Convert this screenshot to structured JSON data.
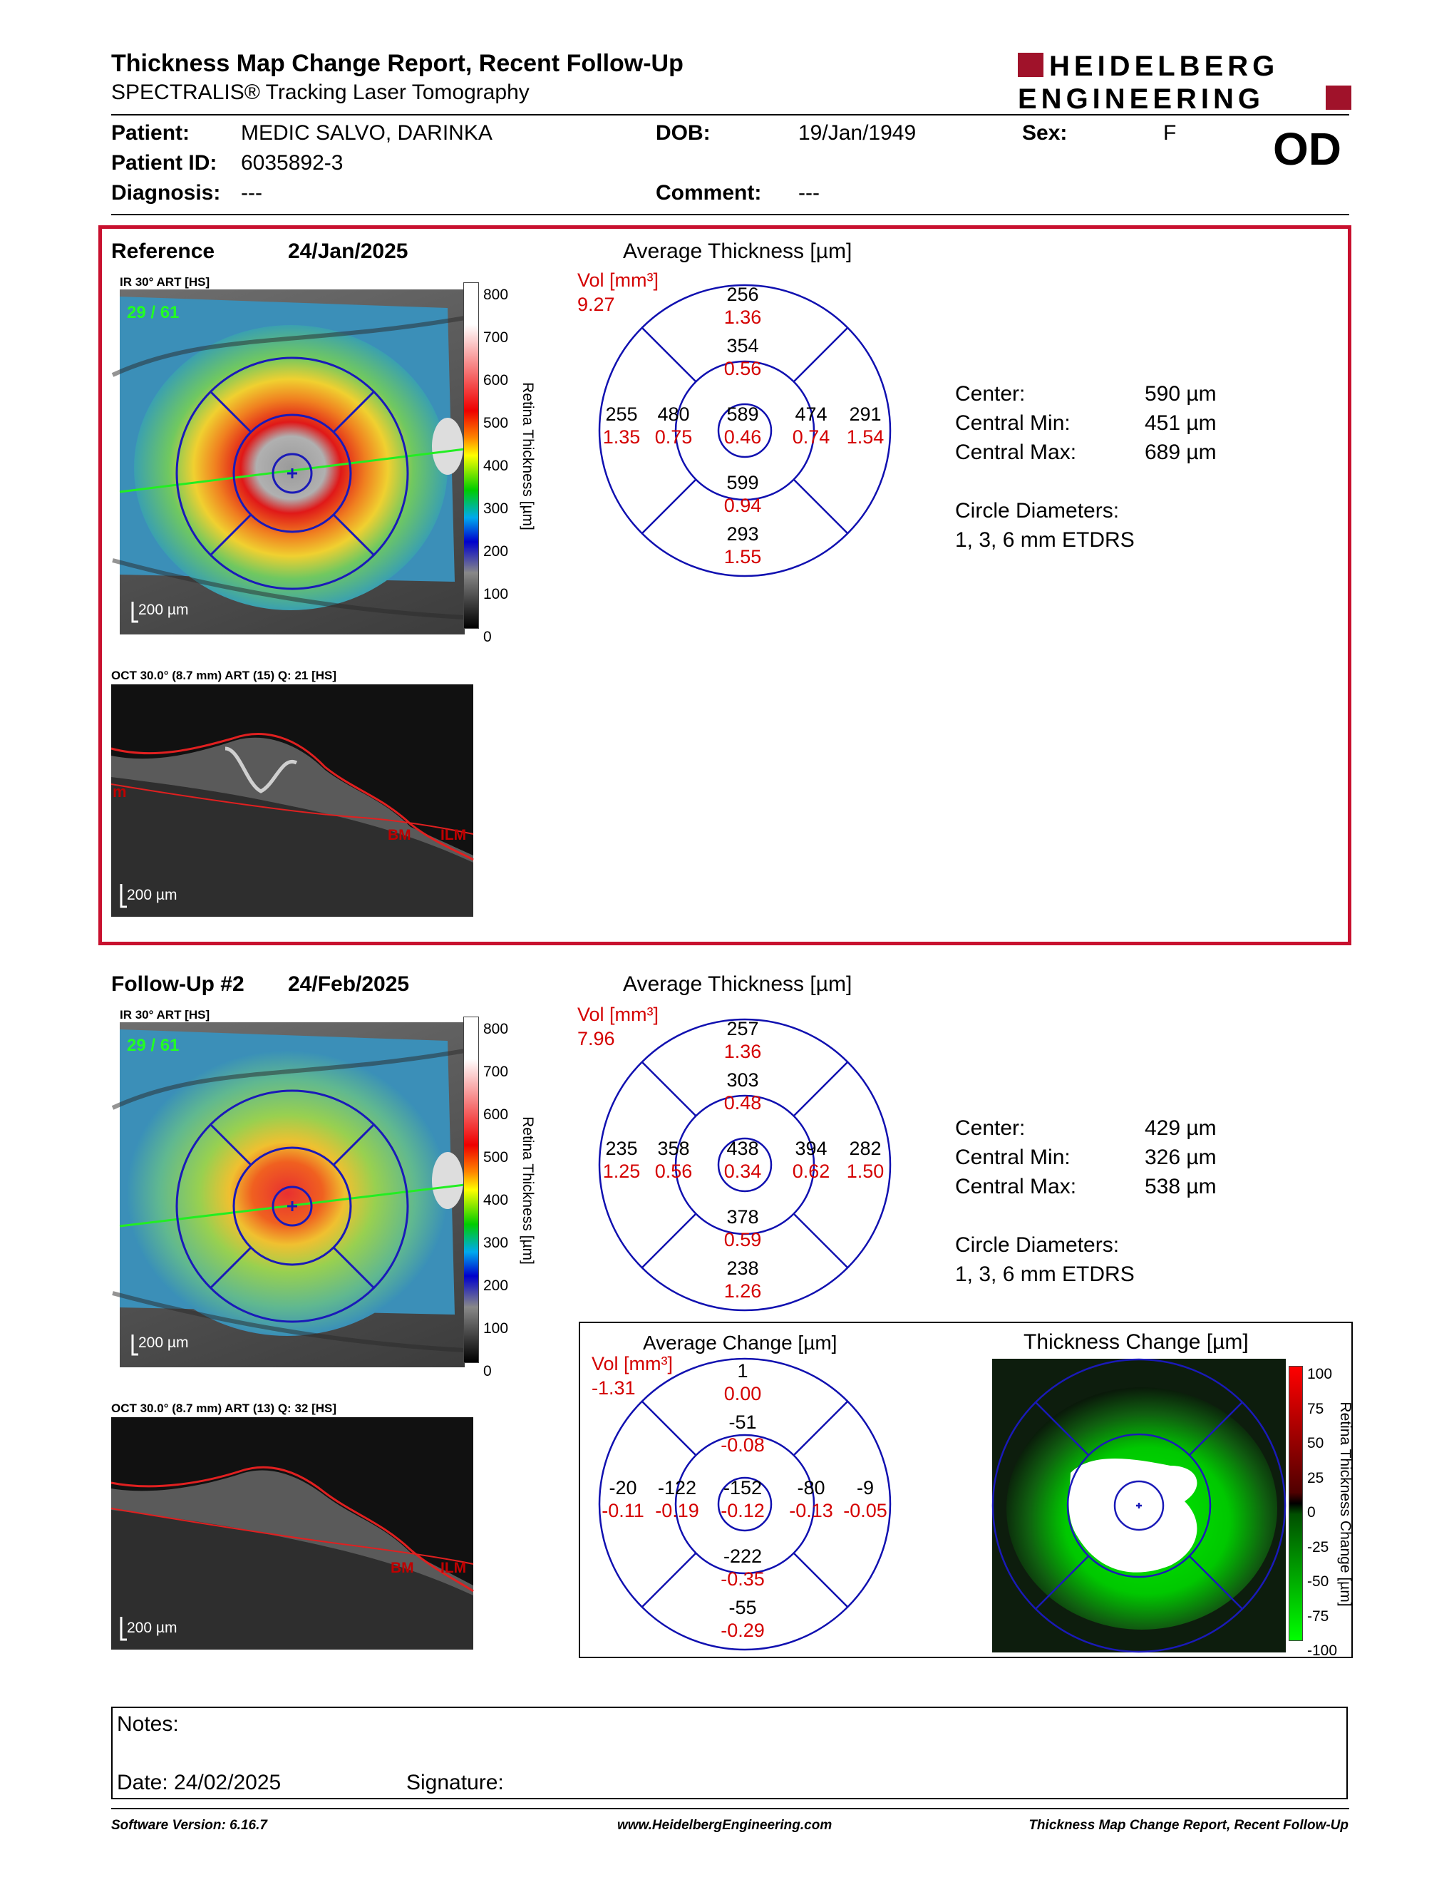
{
  "header": {
    "title": "Thickness Map Change Report, Recent Follow-Up",
    "subtitle": "SPECTRALIS® Tracking Laser Tomography",
    "logo_line1": "HEIDELBERG",
    "logo_line2": "ENGINEERING"
  },
  "patient": {
    "patient_label": "Patient:",
    "patient_value": "MEDIC SALVO, DARINKA",
    "id_label": "Patient ID:",
    "id_value": "6035892-3",
    "diagnosis_label": "Diagnosis:",
    "diagnosis_value": "---",
    "dob_label": "DOB:",
    "dob_value": "19/Jan/1949",
    "comment_label": "Comment:",
    "comment_value": "---",
    "sex_label": "Sex:",
    "sex_value": "F",
    "eye": "OD"
  },
  "reference": {
    "label": "Reference",
    "date": "24/Jan/2025",
    "fundus_label": "IR 30° ART [HS]",
    "frame": "29 / 61",
    "scale_bar": "200 µm",
    "oct_label": "OCT 30.0° (8.7 mm) ART (15) Q: 21 [HS]",
    "oct_scale": "200 µm",
    "bm": "BM",
    "ilm": "ILM",
    "left_mark": "m",
    "grid_title": "Average Thickness [µm]",
    "vol_label": "Vol [mm³]",
    "vol_value": "9.27",
    "sectors": {
      "outer_sup": {
        "t": "256",
        "v": "1.36"
      },
      "inner_sup": {
        "t": "354",
        "v": "0.56"
      },
      "outer_nas": {
        "t": "255",
        "v": "1.35"
      },
      "inner_nas": {
        "t": "480",
        "v": "0.75"
      },
      "center": {
        "t": "589",
        "v": "0.46"
      },
      "inner_tmp": {
        "t": "474",
        "v": "0.74"
      },
      "outer_tmp": {
        "t": "291",
        "v": "1.54"
      },
      "inner_inf": {
        "t": "599",
        "v": "0.94"
      },
      "outer_inf": {
        "t": "293",
        "v": "1.55"
      }
    },
    "stats": {
      "center_label": "Center:",
      "center_value": "590 µm",
      "min_label": "Central Min:",
      "min_value": "451 µm",
      "max_label": "Central Max:",
      "max_value": "689 µm",
      "diam_label": "Circle Diameters:",
      "diam_value": "1, 3, 6 mm ETDRS"
    }
  },
  "followup": {
    "label": "Follow-Up #2",
    "date": "24/Feb/2025",
    "fundus_label": "IR 30° ART [HS]",
    "frame": "29 / 61",
    "scale_bar": "200 µm",
    "oct_label": "OCT 30.0° (8.7 mm) ART (13) Q: 32 [HS]",
    "oct_scale": "200 µm",
    "bm": "BM",
    "ilm": "ILM",
    "grid_title": "Average Thickness [µm]",
    "vol_label": "Vol [mm³]",
    "vol_value": "7.96",
    "sectors": {
      "outer_sup": {
        "t": "257",
        "v": "1.36"
      },
      "inner_sup": {
        "t": "303",
        "v": "0.48"
      },
      "outer_nas": {
        "t": "235",
        "v": "1.25"
      },
      "inner_nas": {
        "t": "358",
        "v": "0.56"
      },
      "center": {
        "t": "438",
        "v": "0.34"
      },
      "inner_tmp": {
        "t": "394",
        "v": "0.62"
      },
      "outer_tmp": {
        "t": "282",
        "v": "1.50"
      },
      "inner_inf": {
        "t": "378",
        "v": "0.59"
      },
      "outer_inf": {
        "t": "238",
        "v": "1.26"
      }
    },
    "stats": {
      "center_label": "Center:",
      "center_value": "429 µm",
      "min_label": "Central Min:",
      "min_value": "326 µm",
      "max_label": "Central Max:",
      "max_value": "538 µm",
      "diam_label": "Circle Diameters:",
      "diam_value": "1, 3, 6 mm ETDRS"
    }
  },
  "change": {
    "grid_title": "Average Change [µm]",
    "vol_label": "Vol [mm³]",
    "vol_value": "-1.31",
    "sectors": {
      "outer_sup": {
        "t": "1",
        "v": "0.00"
      },
      "inner_sup": {
        "t": "-51",
        "v": "-0.08"
      },
      "outer_nas": {
        "t": "-20",
        "v": "-0.11"
      },
      "inner_nas": {
        "t": "-122",
        "v": "-0.19"
      },
      "center": {
        "t": "-152",
        "v": "-0.12"
      },
      "inner_tmp": {
        "t": "-80",
        "v": "-0.13"
      },
      "outer_tmp": {
        "t": "-9",
        "v": "-0.05"
      },
      "inner_inf": {
        "t": "-222",
        "v": "-0.35"
      },
      "outer_inf": {
        "t": "-55",
        "v": "-0.29"
      }
    },
    "map_title": "Thickness Change [µm]",
    "map_axis_title": "Retina Thickness Change [µm]",
    "map_ticks": [
      "100",
      "75",
      "50",
      "25",
      "0",
      "-25",
      "-50",
      "-75",
      "-100"
    ]
  },
  "thickness_scale": {
    "axis_title": "Retina Thickness [µm]",
    "ticks": [
      "800",
      "700",
      "600",
      "500",
      "400",
      "300",
      "200",
      "100",
      "0"
    ]
  },
  "notes": {
    "notes_label": "Notes:",
    "date_label": "Date: 24/02/2025",
    "signature_label": "Signature:"
  },
  "footer": {
    "left": "Software Version: 6.16.7",
    "center": "www.HeidelbergEngineering.com",
    "right": "Thickness Map Change Report, Recent Follow-Up"
  },
  "colors": {
    "accent_red": "#c8102e",
    "grid_blue": "#1010b0",
    "vol_red": "#d40000",
    "frame_green": "#22ff22"
  }
}
